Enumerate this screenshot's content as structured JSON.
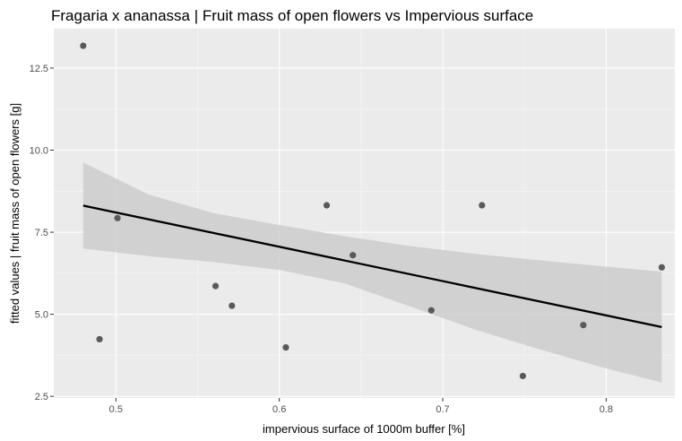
{
  "chart_data": {
    "type": "scatter",
    "title": "Fragaria x ananassa | Fruit mass of open flowers vs Impervious surface",
    "xlabel": "impervious surface of 1000m buffer [%]",
    "ylabel": "fitted values | fruit mass of open flowers [g]",
    "xlim": [
      0.462,
      0.842
    ],
    "ylim": [
      2.45,
      13.7
    ],
    "x_ticks": [
      0.5,
      0.6,
      0.7,
      0.8
    ],
    "x_tick_labels": [
      "0.5",
      "0.6",
      "0.7",
      "0.8"
    ],
    "y_ticks": [
      2.5,
      5.0,
      7.5,
      10.0,
      12.5
    ],
    "y_tick_labels": [
      "2.5",
      "5.0",
      "7.5",
      "10.0",
      "12.5"
    ],
    "grid": true,
    "legend": "none",
    "colors": {
      "points": "#595959",
      "line": "#000000",
      "ribbon": "#cccccc",
      "panel": "#ebebeb"
    },
    "points": [
      {
        "x": 0.48,
        "y": 13.18
      },
      {
        "x": 0.49,
        "y": 4.24
      },
      {
        "x": 0.501,
        "y": 7.93
      },
      {
        "x": 0.561,
        "y": 5.86
      },
      {
        "x": 0.571,
        "y": 5.26
      },
      {
        "x": 0.604,
        "y": 3.99
      },
      {
        "x": 0.629,
        "y": 8.32
      },
      {
        "x": 0.645,
        "y": 6.8
      },
      {
        "x": 0.693,
        "y": 5.12
      },
      {
        "x": 0.724,
        "y": 8.32
      },
      {
        "x": 0.749,
        "y": 3.12
      },
      {
        "x": 0.786,
        "y": 4.67
      },
      {
        "x": 0.834,
        "y": 6.43
      }
    ],
    "fit": {
      "x": [
        0.48,
        0.834
      ],
      "y": [
        8.31,
        4.61
      ]
    },
    "ribbon": {
      "x": [
        0.48,
        0.52,
        0.56,
        0.6,
        0.64,
        0.68,
        0.72,
        0.76,
        0.8,
        0.834
      ],
      "upper": [
        9.62,
        8.65,
        8.08,
        7.72,
        7.38,
        7.08,
        6.84,
        6.64,
        6.45,
        6.3
      ],
      "lower": [
        7.0,
        6.77,
        6.59,
        6.35,
        5.94,
        5.24,
        4.53,
        3.92,
        3.35,
        2.92
      ]
    }
  }
}
